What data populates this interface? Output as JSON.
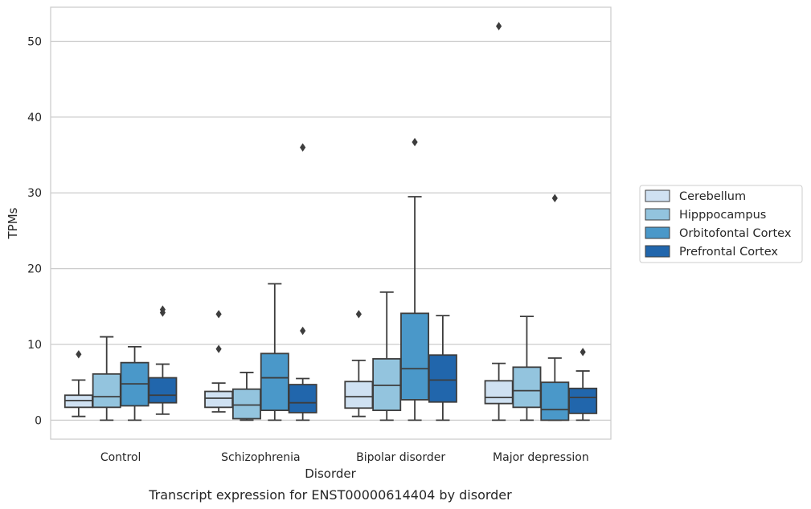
{
  "chart_data": {
    "type": "box",
    "title": "",
    "caption": "Transcript expression for ENST00000614404 by disorder",
    "xlabel": "Disorder",
    "ylabel": "TPMs",
    "ylim": [
      -2.5,
      54.5
    ],
    "yticks": [
      0,
      10,
      20,
      30,
      40,
      50
    ],
    "grid": "horizontal",
    "legend_position": "right",
    "categories": [
      "Control",
      "Schizophrenia",
      "Bipolar disorder",
      "Major depression"
    ],
    "series": [
      {
        "name": "Cerebellum",
        "color": "#cfe1f2",
        "boxes": [
          {
            "whislo": 0.5,
            "q1": 1.7,
            "med": 2.6,
            "q3": 3.3,
            "whishi": 5.3,
            "fliers": [
              8.7
            ]
          },
          {
            "whislo": 1.1,
            "q1": 1.7,
            "med": 2.9,
            "q3": 3.8,
            "whishi": 4.9,
            "fliers": [
              9.4,
              14.0
            ]
          },
          {
            "whislo": 0.5,
            "q1": 1.6,
            "med": 3.1,
            "q3": 5.1,
            "whishi": 7.9,
            "fliers": [
              14.0
            ]
          },
          {
            "whislo": 0.0,
            "q1": 2.2,
            "med": 3.0,
            "q3": 5.2,
            "whishi": 7.5,
            "fliers": [
              52.0
            ]
          }
        ]
      },
      {
        "name": "Hipppocampus",
        "color": "#93c4de",
        "boxes": [
          {
            "whislo": 0.0,
            "q1": 1.7,
            "med": 3.1,
            "q3": 6.1,
            "whishi": 11.0,
            "fliers": []
          },
          {
            "whislo": 0.0,
            "q1": 0.2,
            "med": 2.0,
            "q3": 4.1,
            "whishi": 6.3,
            "fliers": []
          },
          {
            "whislo": 0.0,
            "q1": 1.3,
            "med": 4.6,
            "q3": 8.1,
            "whishi": 16.9,
            "fliers": []
          },
          {
            "whislo": 0.0,
            "q1": 1.7,
            "med": 3.9,
            "q3": 7.0,
            "whishi": 13.7,
            "fliers": []
          }
        ]
      },
      {
        "name": "Orbitofontal Cortex",
        "color": "#4a98c9",
        "boxes": [
          {
            "whislo": 0.0,
            "q1": 1.9,
            "med": 4.8,
            "q3": 7.6,
            "whishi": 9.7,
            "fliers": []
          },
          {
            "whislo": 0.0,
            "q1": 1.3,
            "med": 5.6,
            "q3": 8.8,
            "whishi": 18.0,
            "fliers": []
          },
          {
            "whislo": 0.0,
            "q1": 2.7,
            "med": 6.8,
            "q3": 14.1,
            "whishi": 29.5,
            "fliers": [
              36.7
            ]
          },
          {
            "whislo": 0.0,
            "q1": 0.0,
            "med": 1.4,
            "q3": 5.0,
            "whishi": 8.2,
            "fliers": [
              29.3
            ]
          }
        ]
      },
      {
        "name": "Prefrontal Cortex",
        "color": "#2166ac",
        "boxes": [
          {
            "whislo": 0.8,
            "q1": 2.3,
            "med": 3.3,
            "q3": 5.6,
            "whishi": 7.4,
            "fliers": [
              14.2,
              14.6
            ]
          },
          {
            "whislo": 0.0,
            "q1": 1.0,
            "med": 2.3,
            "q3": 4.7,
            "whishi": 5.5,
            "fliers": [
              11.8,
              36.0
            ]
          },
          {
            "whislo": 0.0,
            "q1": 2.4,
            "med": 5.3,
            "q3": 8.6,
            "whishi": 13.8,
            "fliers": []
          },
          {
            "whislo": 0.0,
            "q1": 0.9,
            "med": 3.0,
            "q3": 4.2,
            "whishi": 6.5,
            "fliers": [
              9.0
            ]
          }
        ]
      }
    ]
  }
}
